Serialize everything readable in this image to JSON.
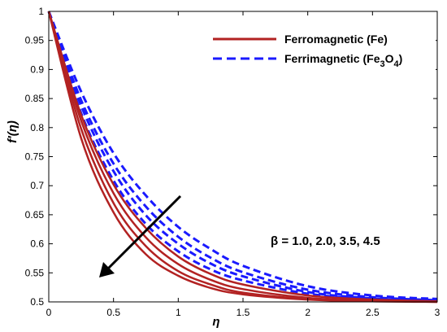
{
  "chart_data": {
    "type": "line",
    "xlabel": "η",
    "ylabel": "f′(η)",
    "xlim": [
      0,
      3
    ],
    "ylim": [
      0.5,
      1
    ],
    "x_ticks": [
      "0",
      "0.5",
      "1",
      "1.5",
      "2",
      "2.5",
      "3"
    ],
    "y_ticks": [
      "0.5",
      "0.55",
      "0.6",
      "0.65",
      "0.7",
      "0.75",
      "0.8",
      "0.85",
      "0.9",
      "0.95",
      "1"
    ],
    "grid": false,
    "legend_position": "top-right",
    "legend": [
      {
        "label": "Ferromagnetic (Fe)",
        "style": "solid",
        "color": "#b22222"
      },
      {
        "label_main": "Ferrimagnetic (Fe",
        "sub1": "3",
        "mid": "O",
        "sub2": "4",
        "close": ")",
        "style": "dashed",
        "color": "#1a1aff"
      }
    ],
    "annotation": {
      "text": "β = 1.0, 2.0, 3.5, 4.5",
      "arrow": "parameter increases toward the lower left"
    },
    "x": [
      0,
      0.25,
      0.5,
      0.75,
      1.0,
      1.25,
      1.5,
      2.0,
      2.5,
      3.0
    ],
    "series": [
      {
        "group": "Ferromagnetic (Fe)",
        "beta": "1.0",
        "style": "solid",
        "y": [
          1.0,
          0.822,
          0.702,
          0.627,
          0.578,
          0.548,
          0.53,
          0.511,
          0.504,
          0.501
        ]
      },
      {
        "group": "Ferromagnetic (Fe)",
        "beta": "2.0",
        "style": "solid",
        "y": [
          1.0,
          0.812,
          0.687,
          0.611,
          0.565,
          0.538,
          0.522,
          0.507,
          0.502,
          0.501
        ]
      },
      {
        "group": "Ferromagnetic (Fe)",
        "beta": "3.5",
        "style": "solid",
        "y": [
          1.0,
          0.798,
          0.67,
          0.596,
          0.553,
          0.53,
          0.516,
          0.505,
          0.502,
          0.5
        ]
      },
      {
        "group": "Ferromagnetic (Fe)",
        "beta": "4.5",
        "style": "solid",
        "y": [
          1.0,
          0.782,
          0.654,
          0.582,
          0.545,
          0.524,
          0.513,
          0.504,
          0.501,
          0.5
        ]
      },
      {
        "group": "Ferrimagnetic (Fe3O4)",
        "beta": "1.0",
        "style": "dashed",
        "y": [
          1.0,
          0.862,
          0.756,
          0.683,
          0.629,
          0.591,
          0.562,
          0.527,
          0.511,
          0.505
        ]
      },
      {
        "group": "Ferrimagnetic (Fe3O4)",
        "beta": "2.0",
        "style": "dashed",
        "y": [
          1.0,
          0.847,
          0.738,
          0.664,
          0.612,
          0.576,
          0.551,
          0.521,
          0.508,
          0.503
        ]
      },
      {
        "group": "Ferrimagnetic (Fe3O4)",
        "beta": "3.5",
        "style": "dashed",
        "y": [
          1.0,
          0.838,
          0.725,
          0.649,
          0.6,
          0.566,
          0.544,
          0.517,
          0.506,
          0.502
        ]
      },
      {
        "group": "Ferrimagnetic (Fe3O4)",
        "beta": "4.5",
        "style": "dashed",
        "y": [
          1.0,
          0.825,
          0.709,
          0.634,
          0.587,
          0.556,
          0.537,
          0.514,
          0.505,
          0.502
        ]
      }
    ]
  }
}
